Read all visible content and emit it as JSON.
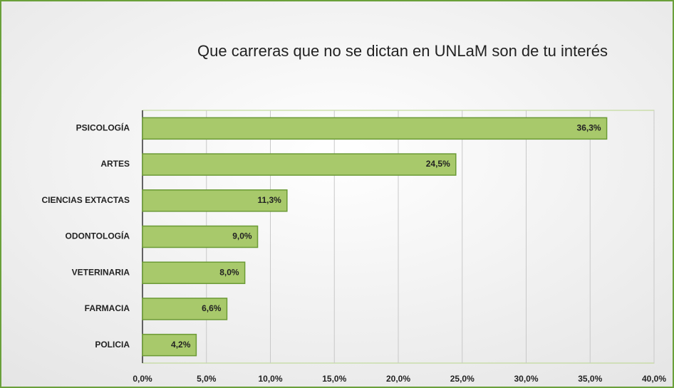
{
  "chart_data": {
    "type": "bar",
    "orientation": "horizontal",
    "title": "Que carreras que no se dictan en UNLaM son de tu interés",
    "categories": [
      "PSICOLOGÍA",
      "ARTES",
      "CIENCIAS EXTACTAS",
      "ODONTOLOGÍA",
      "VETERINARIA",
      "FARMACIA",
      "POLICIA"
    ],
    "values": [
      36.3,
      24.5,
      11.3,
      9.0,
      8.0,
      6.6,
      4.2
    ],
    "value_labels": [
      "36,3%",
      "24,5%",
      "11,3%",
      "9,0%",
      "8,0%",
      "6,6%",
      "4,2%"
    ],
    "color": "#a8c96b",
    "xlim": [
      0,
      40
    ],
    "xticks": [
      {
        "value": 0,
        "label": "0,0%"
      },
      {
        "value": 5,
        "label": "5,0%"
      },
      {
        "value": 10,
        "label": "10,0%"
      },
      {
        "value": 15,
        "label": "15,0%"
      },
      {
        "value": 20,
        "label": "20,0%"
      },
      {
        "value": 25,
        "label": "25,0%"
      },
      {
        "value": 30,
        "label": "30,0%"
      },
      {
        "value": 35,
        "label": "35,0%"
      },
      {
        "value": 40,
        "label": "40,0%"
      }
    ],
    "grid": true
  }
}
